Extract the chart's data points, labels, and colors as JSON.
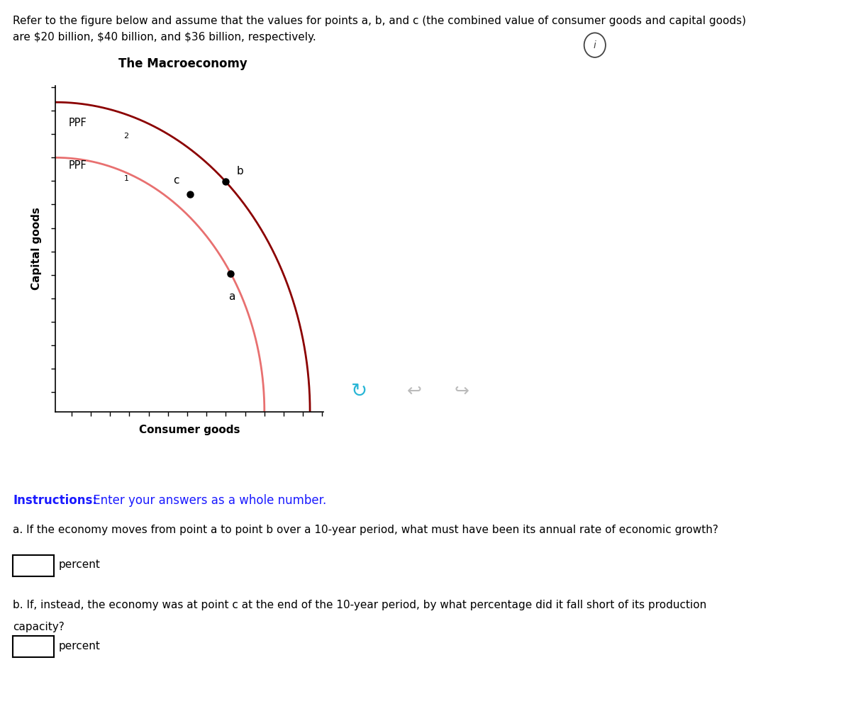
{
  "title": "The Macroeconomy",
  "header_line1": "Refer to the figure below and assume that the values for points a, b, and c (the combined value of consumer goods and capital goods)",
  "header_line2": "are $20 billion, $40 billion, and $36 billion, respectively.",
  "xlabel": "Consumer goods",
  "ylabel": "Capital goods",
  "ppf1_color": "#E87070",
  "ppf2_color": "#8B0000",
  "ppf1_label": "PPF",
  "ppf1_sub": "1",
  "ppf2_label": "PPF",
  "ppf2_sub": "2",
  "point_a_label": "a",
  "point_b_label": "b",
  "point_c_label": "c",
  "instructions_bold": "Instructions:",
  "instructions_text": " Enter your answers as a whole number.",
  "instructions_color": "#1a1aff",
  "question_a_text": "a. If the economy moves from point a to point b over a 10-year period, what must have been its annual rate of economic growth?",
  "question_b_line1": "b. If, instead, the economy was at point c at the end of the 10-year period, by what percentage did it fall short of its production",
  "question_b_line2": "capacity?",
  "percent_label": "percent",
  "background_color": "#ffffff",
  "nav_bg": "#f2f2f2",
  "header_fontsize": 11,
  "title_fontsize": 12,
  "axis_label_fontsize": 11,
  "text_fontsize": 11
}
